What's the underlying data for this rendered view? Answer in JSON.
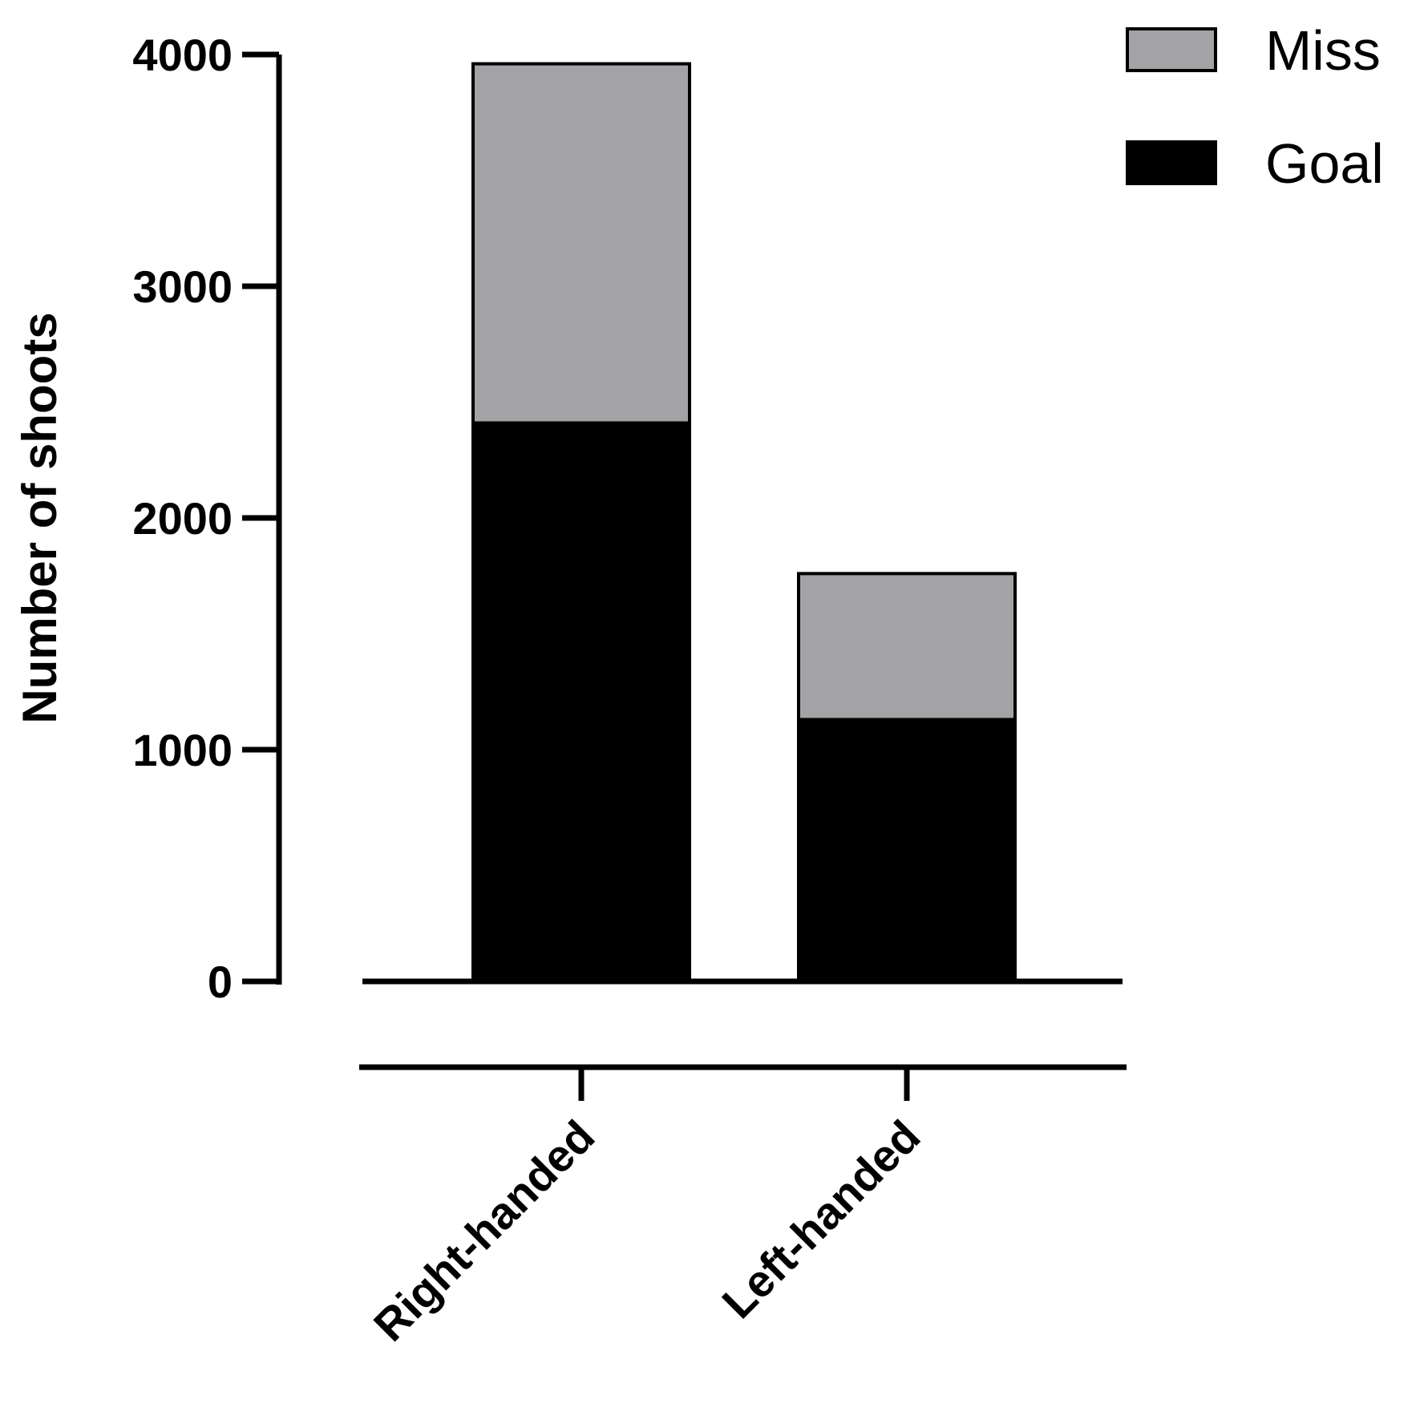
{
  "chart_data": {
    "type": "bar",
    "stacked": true,
    "categories": [
      "Right-handed",
      "Left-handed"
    ],
    "series": [
      {
        "name": "Goal",
        "values": [
          2410,
          1130
        ],
        "color": "#000000"
      },
      {
        "name": "Miss",
        "values": [
          1550,
          630
        ],
        "color": "#a3a3a6"
      }
    ],
    "xlabel": "",
    "ylabel": "Number of shoots",
    "ylim": [
      0,
      4000
    ],
    "yticks": [
      0,
      1000,
      2000,
      3000,
      4000
    ],
    "legend": {
      "position": "top-right",
      "order": [
        "Miss",
        "Goal"
      ]
    },
    "grid": false
  }
}
